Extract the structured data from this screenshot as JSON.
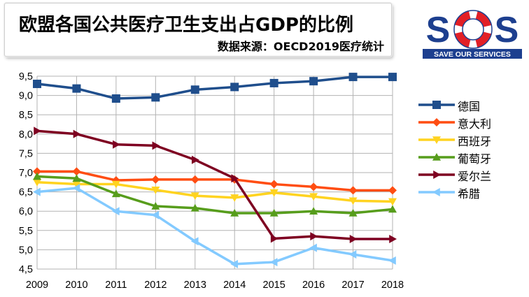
{
  "header": {
    "title": "欧盟各国公共医疗卫生支出占GDP的比例",
    "subtitle": "数据来源：OECD2019医疗统计"
  },
  "logo": {
    "brand": "SOS",
    "tagline": "SAVE OUR SERVICES",
    "colors": {
      "navy": "#1d3f8f",
      "red": "#e21f26"
    }
  },
  "chart_data": {
    "type": "line",
    "title": "欧盟各国公共医疗卫生支出占GDP的比例",
    "subtitle": "数据来源：OECD2019医疗统计",
    "x": [
      2009,
      2010,
      2011,
      2012,
      2013,
      2014,
      2015,
      2016,
      2017,
      2018
    ],
    "ylim": [
      4.5,
      9.5
    ],
    "yticks": [
      "9,5",
      "9,0",
      "8,5",
      "8,0",
      "7,5",
      "7,0",
      "6,5",
      "6,0",
      "5,5",
      "5,0",
      "4,5"
    ],
    "grid": true,
    "legend_position": "right",
    "series": [
      {
        "name": "德国",
        "color": "#1f4e8c",
        "marker": "square",
        "values": [
          9.3,
          9.18,
          8.92,
          8.95,
          9.15,
          9.22,
          9.32,
          9.37,
          9.48,
          9.48
        ]
      },
      {
        "name": "意大利",
        "color": "#ff4d12",
        "marker": "diamond",
        "values": [
          7.03,
          7.03,
          6.8,
          6.82,
          6.82,
          6.82,
          6.7,
          6.63,
          6.54,
          6.54
        ]
      },
      {
        "name": "西班牙",
        "color": "#ffd320",
        "marker": "triangle-down",
        "values": [
          6.75,
          6.7,
          6.7,
          6.55,
          6.4,
          6.35,
          6.48,
          6.38,
          6.27,
          6.25
        ]
      },
      {
        "name": "葡萄牙",
        "color": "#579d1c",
        "marker": "triangle-up",
        "values": [
          6.9,
          6.85,
          6.45,
          6.13,
          6.08,
          5.95,
          5.95,
          6.0,
          5.95,
          6.05
        ]
      },
      {
        "name": "爱尔兰",
        "color": "#7e0021",
        "marker": "triangle-right",
        "values": [
          8.08,
          8.0,
          7.73,
          7.7,
          7.33,
          6.85,
          5.29,
          5.35,
          5.28,
          5.28
        ]
      },
      {
        "name": "希腊",
        "color": "#83caff",
        "marker": "triangle-left",
        "values": [
          6.5,
          6.6,
          6.0,
          5.9,
          5.22,
          4.63,
          4.68,
          5.05,
          4.88,
          4.72
        ]
      }
    ]
  }
}
